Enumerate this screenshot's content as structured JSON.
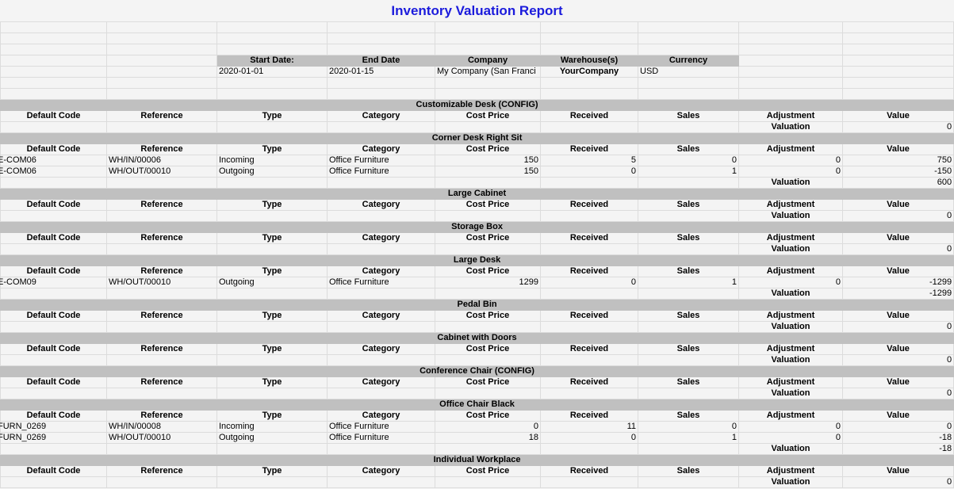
{
  "report": {
    "title": "Inventory Valuation Report",
    "header_labels": [
      "Start Date:",
      "End Date",
      "Company",
      "Warehouse(s)",
      "Currency"
    ],
    "header_values": [
      "2020-01-01",
      "2020-01-15",
      "My Company (San Franci",
      "YourCompany",
      "USD"
    ]
  },
  "columns": [
    "Default Code",
    "Reference",
    "Type",
    "Category",
    "Cost Price",
    "Received",
    "Sales",
    "Adjustment",
    "Value"
  ],
  "valuation_label": "Valuation",
  "products": [
    {
      "name": "Customizable Desk (CONFIG)",
      "lines": [],
      "valuation": "0"
    },
    {
      "name": "Corner Desk Right Sit",
      "lines": [
        {
          "code": "E-COM06",
          "ref": "WH/IN/00006",
          "type": "Incoming",
          "category": "Office Furniture",
          "cost": "150",
          "received": "5",
          "sales": "0",
          "adjustment": "0",
          "value": "750"
        },
        {
          "code": "E-COM06",
          "ref": "WH/OUT/00010",
          "type": "Outgoing",
          "category": "Office Furniture",
          "cost": "150",
          "received": "0",
          "sales": "1",
          "adjustment": "0",
          "value": "-150"
        }
      ],
      "valuation": "600"
    },
    {
      "name": "Large Cabinet",
      "lines": [],
      "valuation": "0"
    },
    {
      "name": "Storage Box",
      "lines": [],
      "valuation": "0"
    },
    {
      "name": "Large Desk",
      "lines": [
        {
          "code": "E-COM09",
          "ref": "WH/OUT/00010",
          "type": "Outgoing",
          "category": "Office Furniture",
          "cost": "1299",
          "received": "0",
          "sales": "1",
          "adjustment": "0",
          "value": "-1299"
        }
      ],
      "valuation": "-1299"
    },
    {
      "name": "Pedal Bin",
      "lines": [],
      "valuation": "0"
    },
    {
      "name": "Cabinet with Doors",
      "lines": [],
      "valuation": "0"
    },
    {
      "name": "Conference Chair (CONFIG)",
      "lines": [],
      "valuation": "0"
    },
    {
      "name": "Office Chair Black",
      "lines": [
        {
          "code": "FURN_0269",
          "ref": "WH/IN/00008",
          "type": "Incoming",
          "category": "Office Furniture",
          "cost": "0",
          "received": "11",
          "sales": "0",
          "adjustment": "0",
          "value": "0"
        },
        {
          "code": "FURN_0269",
          "ref": "WH/OUT/00010",
          "type": "Outgoing",
          "category": "Office Furniture",
          "cost": "18",
          "received": "0",
          "sales": "1",
          "adjustment": "0",
          "value": "-18"
        }
      ],
      "valuation": "-18"
    },
    {
      "name": "Individual Workplace",
      "lines": [],
      "valuation": "0"
    }
  ]
}
